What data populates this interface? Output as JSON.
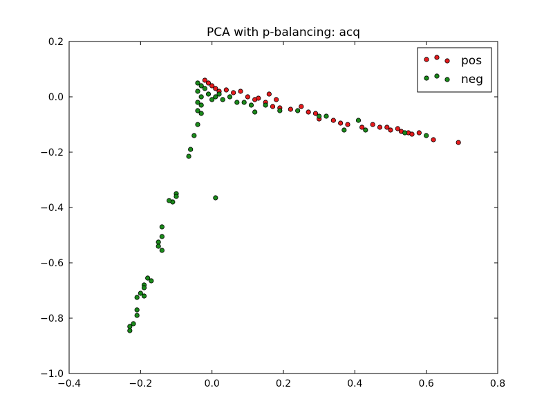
{
  "chart_data": {
    "type": "scatter",
    "title": "PCA with p-balancing: acq",
    "xlabel": "",
    "ylabel": "",
    "xlim": [
      -0.4,
      0.8
    ],
    "ylim": [
      -1.0,
      0.2
    ],
    "xticks": [
      -0.4,
      -0.2,
      0.0,
      0.2,
      0.4,
      0.6,
      0.8
    ],
    "yticks": [
      -1.0,
      -0.8,
      -0.6,
      -0.4,
      -0.2,
      0.0,
      0.2
    ],
    "xtick_labels": [
      "−0.4",
      "−0.2",
      "0.0",
      "0.2",
      "0.4",
      "0.6",
      "0.8"
    ],
    "ytick_labels": [
      "−1.0",
      "−0.8",
      "−0.6",
      "−0.4",
      "−0.2",
      "0.0",
      "0.2"
    ],
    "grid": false,
    "legend_position": "top-right",
    "series": [
      {
        "name": "pos",
        "color": "#e41a1c",
        "points": [
          [
            -0.02,
            0.06
          ],
          [
            -0.01,
            0.05
          ],
          [
            0.0,
            0.04
          ],
          [
            0.01,
            0.03
          ],
          [
            0.02,
            0.02
          ],
          [
            0.04,
            0.025
          ],
          [
            0.06,
            0.015
          ],
          [
            0.08,
            0.02
          ],
          [
            0.1,
            0.0
          ],
          [
            0.12,
            -0.01
          ],
          [
            0.13,
            -0.005
          ],
          [
            0.15,
            -0.02
          ],
          [
            0.16,
            0.01
          ],
          [
            0.17,
            -0.035
          ],
          [
            0.18,
            -0.01
          ],
          [
            0.19,
            -0.04
          ],
          [
            0.22,
            -0.045
          ],
          [
            0.25,
            -0.035
          ],
          [
            0.27,
            -0.055
          ],
          [
            0.29,
            -0.06
          ],
          [
            0.3,
            -0.08
          ],
          [
            0.34,
            -0.085
          ],
          [
            0.36,
            -0.095
          ],
          [
            0.38,
            -0.1
          ],
          [
            0.42,
            -0.11
          ],
          [
            0.45,
            -0.1
          ],
          [
            0.47,
            -0.11
          ],
          [
            0.49,
            -0.11
          ],
          [
            0.5,
            -0.12
          ],
          [
            0.52,
            -0.115
          ],
          [
            0.53,
            -0.125
          ],
          [
            0.55,
            -0.13
          ],
          [
            0.56,
            -0.135
          ],
          [
            0.58,
            -0.13
          ],
          [
            0.62,
            -0.155
          ],
          [
            0.69,
            -0.165
          ]
        ]
      },
      {
        "name": "neg",
        "color": "#1a8a1a",
        "points": [
          [
            -0.04,
            0.05
          ],
          [
            -0.03,
            0.04
          ],
          [
            -0.04,
            0.02
          ],
          [
            -0.03,
            0.0
          ],
          [
            -0.04,
            -0.02
          ],
          [
            -0.03,
            -0.03
          ],
          [
            -0.04,
            -0.05
          ],
          [
            -0.03,
            -0.06
          ],
          [
            -0.02,
            0.03
          ],
          [
            -0.01,
            0.01
          ],
          [
            0.0,
            -0.01
          ],
          [
            0.01,
            0.0
          ],
          [
            0.02,
            0.01
          ],
          [
            0.03,
            -0.01
          ],
          [
            0.05,
            0.0
          ],
          [
            0.07,
            -0.02
          ],
          [
            0.09,
            -0.02
          ],
          [
            0.11,
            -0.03
          ],
          [
            0.12,
            -0.055
          ],
          [
            0.15,
            -0.03
          ],
          [
            0.19,
            -0.05
          ],
          [
            0.24,
            -0.05
          ],
          [
            0.3,
            -0.07
          ],
          [
            0.32,
            -0.07
          ],
          [
            0.37,
            -0.12
          ],
          [
            0.41,
            -0.085
          ],
          [
            0.43,
            -0.12
          ],
          [
            0.54,
            -0.13
          ],
          [
            0.6,
            -0.14
          ],
          [
            -0.04,
            -0.1
          ],
          [
            -0.05,
            -0.14
          ],
          [
            -0.06,
            -0.19
          ],
          [
            -0.065,
            -0.215
          ],
          [
            -0.1,
            -0.35
          ],
          [
            -0.1,
            -0.36
          ],
          [
            -0.11,
            -0.38
          ],
          [
            -0.12,
            -0.375
          ],
          [
            0.01,
            -0.365
          ],
          [
            -0.14,
            -0.47
          ],
          [
            -0.14,
            -0.505
          ],
          [
            -0.15,
            -0.525
          ],
          [
            -0.15,
            -0.54
          ],
          [
            -0.14,
            -0.555
          ],
          [
            -0.18,
            -0.655
          ],
          [
            -0.19,
            -0.68
          ],
          [
            -0.19,
            -0.69
          ],
          [
            -0.17,
            -0.665
          ],
          [
            -0.2,
            -0.71
          ],
          [
            -0.19,
            -0.72
          ],
          [
            -0.21,
            -0.725
          ],
          [
            -0.21,
            -0.77
          ],
          [
            -0.21,
            -0.79
          ],
          [
            -0.22,
            -0.82
          ],
          [
            -0.23,
            -0.83
          ],
          [
            -0.23,
            -0.845
          ]
        ]
      }
    ]
  }
}
